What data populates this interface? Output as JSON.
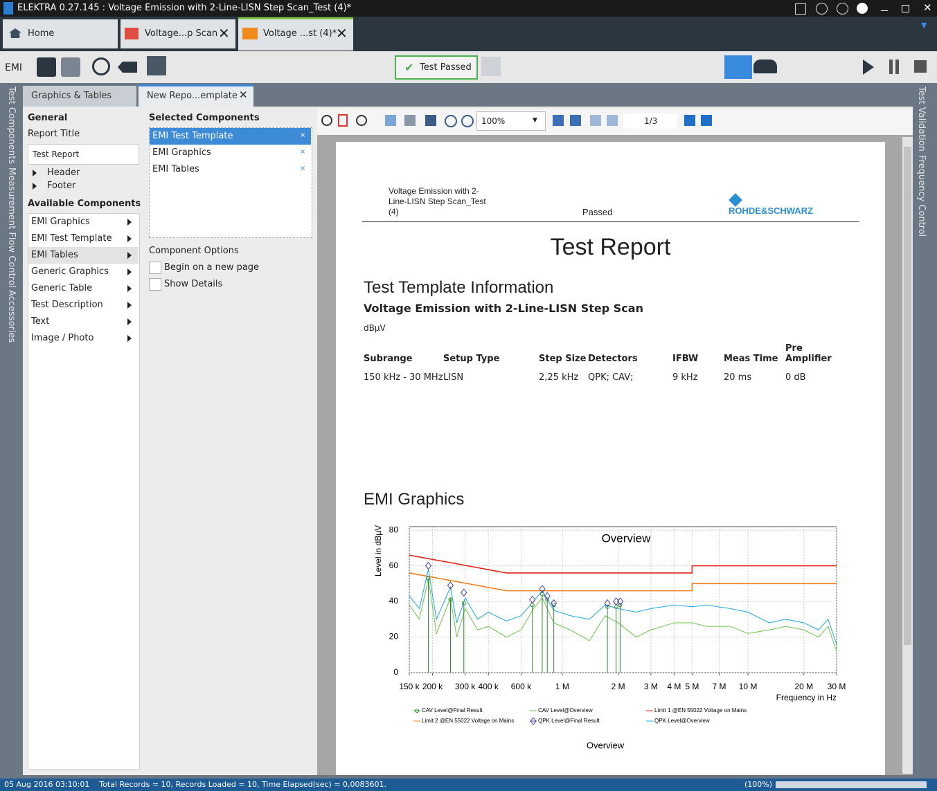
{
  "window": {
    "title": "ELEKTRA 0.27.145 : Voltage Emission with 2-Line-LISN Step Scan_Test (4)*"
  },
  "tabs": [
    "Home",
    "Voltage...p Scan",
    "Voltage ...st (4)*"
  ],
  "toolbar": {
    "mode": "EMI",
    "status": "Test Passed"
  },
  "side_left": [
    "Test Components",
    "Measurement Flow Control",
    "Accessories"
  ],
  "side_right": [
    "Test Validation",
    "Frequency Control"
  ],
  "panel_tabs": [
    "Graphics & Tables",
    "New Repo...emplate"
  ],
  "general": {
    "heading": "General",
    "report_title_label": "Report Title",
    "report_title": "Test Report",
    "items": [
      "Header",
      "Footer"
    ]
  },
  "available": {
    "heading": "Available Components",
    "items": [
      "EMI Graphics",
      "EMI Test Template",
      "EMI Tables",
      "Generic Graphics",
      "Generic Table",
      "Test Description",
      "Text",
      "Image / Photo"
    ]
  },
  "selected": {
    "heading": "Selected Components",
    "items": [
      "EMI Test Template",
      "EMI Graphics",
      "EMI Tables"
    ]
  },
  "options": {
    "heading": "Component Options",
    "items": [
      "Begin on a new page",
      "Show Details"
    ]
  },
  "viewer": {
    "zoom": "100%",
    "page": "1/3"
  },
  "report": {
    "header_title": "Voltage Emission with 2-Line-LISN Step Scan_Test (4)",
    "header_status": "Passed",
    "logo": "ROHDE&SCHWARZ",
    "title": "Test Report",
    "section1": "Test Template Information",
    "template_name": "Voltage Emission with 2-Line-LISN Step Scan",
    "unit": "dBµV",
    "table": {
      "columns": [
        "Subrange",
        "Setup Type",
        "Step Size",
        "Detectors",
        "IFBW",
        "Meas Time",
        "Pre Amplifier"
      ],
      "rows": [
        [
          "150 kHz - 30 MHz",
          "LISN",
          "2,25 kHz",
          "QPK; CAV;",
          "9 kHz",
          "20 ms",
          "0 dB"
        ]
      ]
    },
    "section2": "EMI Graphics",
    "chart": {
      "type": "line",
      "title": "Overview",
      "x_label": "Frequency in Hz",
      "y_label": "Level in dBµV",
      "caption": "Overview",
      "x_log": true,
      "grid": true,
      "xlim": [
        150000,
        30000000
      ],
      "ylim": [
        0,
        82
      ],
      "xticks": [
        {
          "value": 150000,
          "label": "150 k"
        },
        {
          "value": 200000,
          "label": "200 k"
        },
        {
          "value": 300000,
          "label": "300 k"
        },
        {
          "value": 400000,
          "label": "400 k"
        },
        {
          "value": 600000,
          "label": "600 k"
        },
        {
          "value": 1000000,
          "label": "1 M"
        },
        {
          "value": 2000000,
          "label": "2 M"
        },
        {
          "value": 3000000,
          "label": "3 M"
        },
        {
          "value": 4000000,
          "label": "4 M"
        },
        {
          "value": 5000000,
          "label": "5 M"
        },
        {
          "value": 7000000,
          "label": "7 M"
        },
        {
          "value": 10000000,
          "label": "10 M"
        },
        {
          "value": 20000000,
          "label": "20 M"
        },
        {
          "value": 30000000,
          "label": "30 M"
        }
      ],
      "yticks": [
        0,
        20,
        40,
        60,
        80
      ],
      "series": [
        {
          "name": "CAV Level@Final Result",
          "color": "#2e8b2e",
          "marker": "circle",
          "x": [
            190000,
            250000,
            295000,
            690000,
            780000,
            830000,
            900000,
            1750000,
            1950000,
            2050000
          ],
          "values": [
            53,
            41,
            39,
            38,
            44,
            41,
            38,
            37,
            37,
            38
          ]
        },
        {
          "name": "CAV Level@Overview",
          "color": "#6cc24a",
          "x": [
            150000,
            170000,
            190000,
            210000,
            250000,
            270000,
            300000,
            350000,
            400000,
            500000,
            600000,
            700000,
            780000,
            900000,
            1100000,
            1400000,
            1700000,
            2000000,
            2500000,
            3000000,
            4000000,
            5000000,
            6000000,
            8000000,
            10000000,
            13000000,
            16000000,
            20000000,
            24000000,
            27000000,
            30000000
          ],
          "values": [
            38,
            30,
            53,
            22,
            42,
            20,
            36,
            24,
            26,
            20,
            24,
            36,
            42,
            28,
            24,
            18,
            32,
            28,
            20,
            24,
            28,
            28,
            26,
            26,
            22,
            24,
            26,
            24,
            20,
            26,
            12
          ]
        },
        {
          "name": "Limit 1 @EN 55022 Voltage on Mains",
          "color": "#e3261c",
          "x": [
            150000,
            500000,
            5000000,
            5000000,
            30000000
          ],
          "values": [
            66,
            56,
            56,
            60,
            60
          ]
        },
        {
          "name": "Limit 2 @EN 55022 Voltage on Mains",
          "color": "#f07c1a",
          "x": [
            150000,
            500000,
            5000000,
            5000000,
            30000000
          ],
          "values": [
            56,
            46,
            46,
            50,
            50
          ]
        },
        {
          "name": "QPK Level@Final Result",
          "color": "#4a3fa8",
          "marker": "diamond",
          "x": [
            190000,
            250000,
            295000,
            690000,
            780000,
            830000,
            900000,
            1750000,
            1950000,
            2050000
          ],
          "values": [
            60,
            49,
            45,
            41,
            47,
            43,
            39,
            39,
            40,
            40
          ]
        },
        {
          "name": "QPK Level@Overview",
          "color": "#18a8e0",
          "x": [
            150000,
            170000,
            190000,
            210000,
            250000,
            270000,
            300000,
            350000,
            400000,
            500000,
            600000,
            700000,
            780000,
            900000,
            1100000,
            1400000,
            1700000,
            2000000,
            2500000,
            3000000,
            4000000,
            5000000,
            6000000,
            8000000,
            10000000,
            13000000,
            16000000,
            20000000,
            24000000,
            27000000,
            30000000
          ],
          "values": [
            43,
            36,
            58,
            30,
            48,
            28,
            42,
            30,
            34,
            29,
            32,
            40,
            46,
            35,
            32,
            30,
            38,
            36,
            34,
            36,
            38,
            37,
            38,
            36,
            34,
            28,
            30,
            28,
            24,
            30,
            16
          ]
        }
      ]
    }
  },
  "status_bar": {
    "text": "05 Aug 2016 03:10:01    Total Records = 10, Records Loaded = 10, Time Elapsed(sec) = 0,0083601.",
    "zoom": "(100%)"
  }
}
